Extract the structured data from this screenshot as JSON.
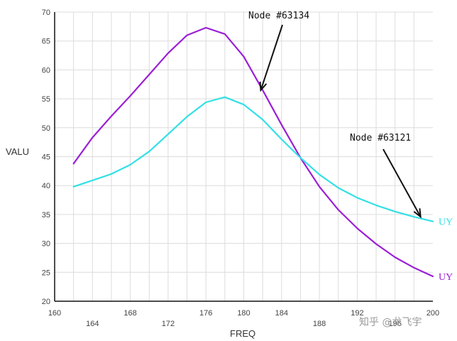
{
  "chart_data": {
    "type": "line",
    "xlabel": "FREQ",
    "ylabel": "VALU",
    "xlim": [
      160,
      200
    ],
    "ylim": [
      20,
      70
    ],
    "x_ticks_upper": [
      160,
      168,
      176,
      180,
      184,
      192,
      200
    ],
    "x_ticks_lower": [
      164,
      172,
      188,
      196
    ],
    "x_tick_labels_upper": [
      "160",
      "168",
      "176",
      "180",
      "184",
      "192",
      "200"
    ],
    "x_tick_labels_lower": [
      "164",
      "172",
      "188",
      "196"
    ],
    "y_ticks": [
      20,
      25,
      30,
      35,
      40,
      45,
      50,
      55,
      60,
      65,
      70
    ],
    "y_tick_labels": [
      "20",
      "25",
      "30",
      "35",
      "40",
      "45",
      "50",
      "55",
      "60",
      "65",
      "70"
    ],
    "grid": true,
    "series": [
      {
        "name": "UY",
        "color": "#9b1fd6",
        "x": [
          162,
          164,
          166,
          168,
          170,
          172,
          174,
          176,
          178,
          180,
          182,
          184,
          186,
          188,
          190,
          192,
          194,
          196,
          198,
          200
        ],
        "y": [
          43.8,
          48.3,
          52.0,
          55.5,
          59.2,
          62.9,
          66.0,
          67.3,
          66.2,
          62.3,
          56.5,
          50.5,
          44.8,
          39.8,
          35.8,
          32.6,
          29.9,
          27.6,
          25.8,
          24.3
        ]
      },
      {
        "name": "UY",
        "color": "#33e0e6",
        "x": [
          162,
          164,
          166,
          168,
          170,
          172,
          174,
          176,
          178,
          180,
          182,
          184,
          186,
          188,
          190,
          192,
          194,
          196,
          198,
          200
        ],
        "y": [
          39.8,
          40.9,
          42.0,
          43.6,
          45.9,
          48.9,
          51.9,
          54.4,
          55.3,
          54.0,
          51.4,
          48.0,
          44.8,
          41.9,
          39.6,
          37.9,
          36.6,
          35.5,
          34.6,
          33.8
        ]
      }
    ],
    "annotations": [
      {
        "text": "Node #63134",
        "points_to": {
          "x": 181.8,
          "y": 56.5
        }
      },
      {
        "text": "Node #63121",
        "points_to": {
          "x": 198.7,
          "y": 34.6
        }
      }
    ]
  },
  "watermark": {
    "text": "知乎 @龙飞宇"
  }
}
